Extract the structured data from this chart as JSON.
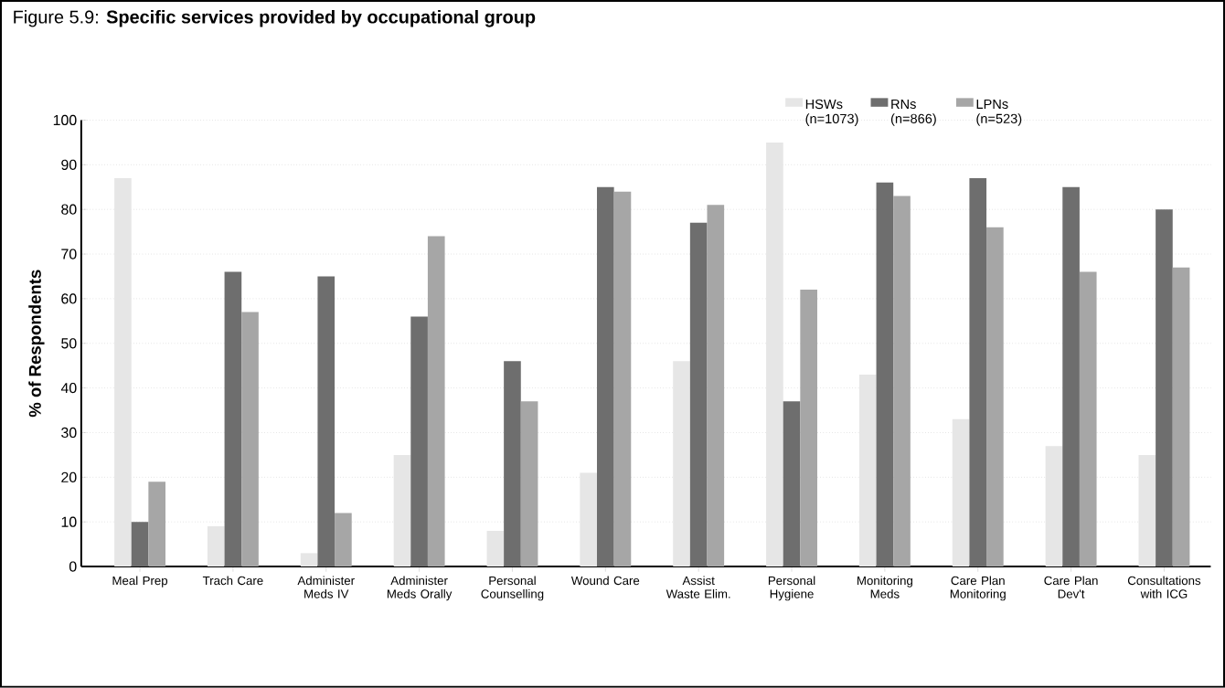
{
  "chart_data": {
    "type": "bar",
    "title": "Figure 5.9: **Specific services provided by occupational group**",
    "ylabel": "% of Respondents",
    "categories": [
      "Meal Prep",
      "Trach Care",
      "Administer Meds IV",
      "Administer Meds Orally",
      "Personal Counselling",
      "Wound Care",
      "Assist Waste Elim.",
      "Personal Hygiene",
      "Monitoring Meds",
      "Care Plan Monitoring",
      "Care Plan Dev't",
      "Consultations with ICG"
    ],
    "series": [
      {
        "name": "HSWs (n=1073)",
        "color": "#e6e6e6",
        "values": [
          87,
          9,
          3,
          25,
          8,
          21,
          46,
          95,
          43,
          33,
          27,
          25
        ]
      },
      {
        "name": "RNs (n=866)",
        "color": "#6e6e6e",
        "values": [
          10,
          66,
          65,
          56,
          46,
          85,
          77,
          37,
          86,
          87,
          85,
          80
        ]
      },
      {
        "name": "LPNs (n=523)",
        "color": "#a6a6a6",
        "values": [
          19,
          57,
          12,
          74,
          37,
          84,
          81,
          62,
          83,
          76,
          66,
          67
        ]
      }
    ],
    "ylim": [
      0,
      100
    ],
    "yticks": [
      0,
      10,
      20,
      30,
      40,
      50,
      60,
      70,
      80,
      90,
      100
    ],
    "grid": "y",
    "legend": "top right"
  }
}
